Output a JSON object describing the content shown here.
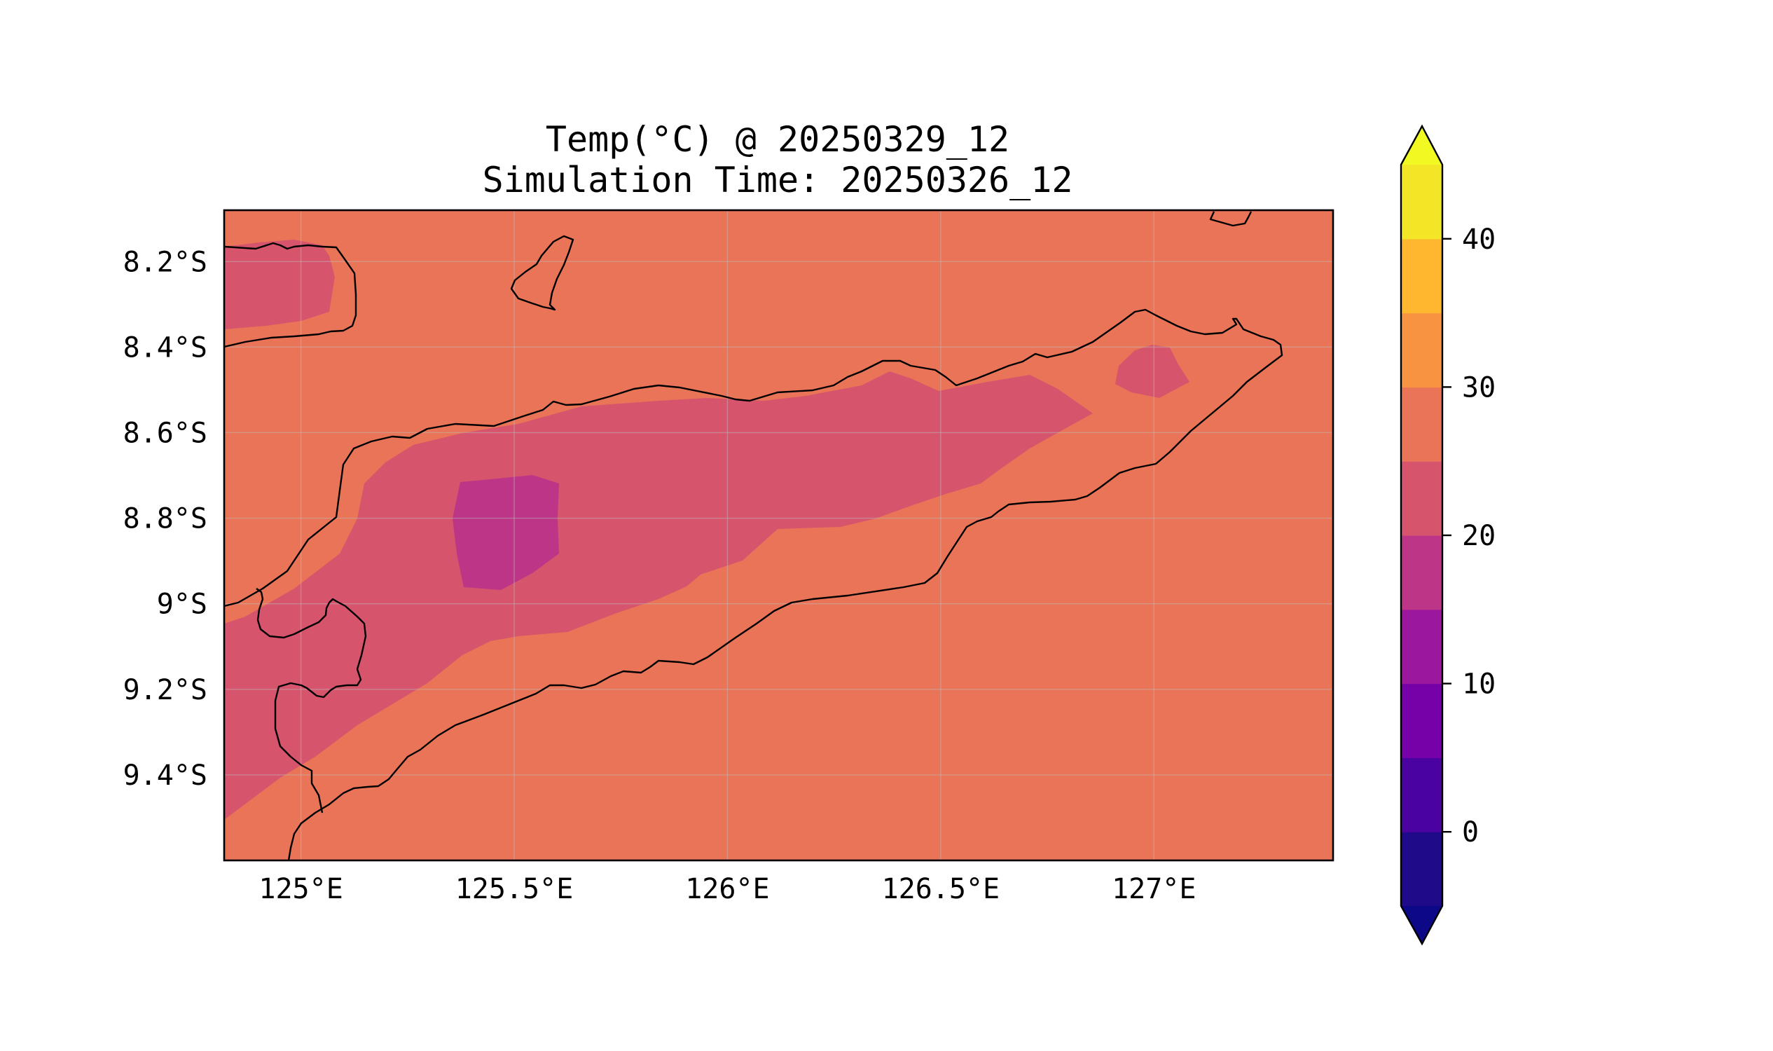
{
  "map": {
    "title": "Temp(°C) @ 20250329_12",
    "subtitle": "Simulation Time: 20250326_12",
    "x_ticks": [
      "125°E",
      "125.5°E",
      "126°E",
      "126.5°E",
      "127°E"
    ],
    "y_ticks": [
      "8.2°S",
      "8.4°S",
      "8.6°S",
      "8.8°S",
      "9°S",
      "9.2°S",
      "9.4°S"
    ],
    "grid": true,
    "extent": {
      "lon": [
        124.82,
        127.42
      ],
      "lat": [
        -9.6,
        -8.08
      ]
    }
  },
  "colorbar": {
    "ticks": [
      "0",
      "10",
      "20",
      "30",
      "40"
    ],
    "levels": [
      -5,
      0,
      5,
      10,
      15,
      20,
      25,
      30,
      35,
      40,
      45
    ],
    "extend": "both",
    "colormap": "plasma",
    "colors": [
      "#1f0a8a",
      "#4a02a0",
      "#7601a8",
      "#9b179e",
      "#bc3587",
      "#d6556d",
      "#ea7457",
      "#f89441",
      "#feb72e",
      "#f2e627"
    ],
    "under_color": "#0d0887",
    "over_color": "#f0f921"
  },
  "field_colors": {
    "band_25_30": "#ea7457",
    "band_20_25": "#d6556d",
    "band_15_20": "#bc3587"
  }
}
